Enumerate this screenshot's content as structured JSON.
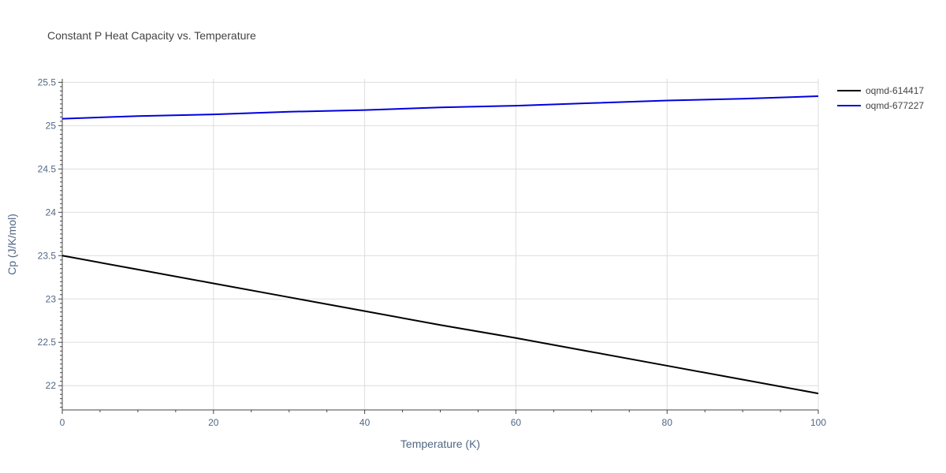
{
  "chart_data": {
    "type": "line",
    "title": "Constant P Heat Capacity vs. Temperature",
    "xlabel": "Temperature (K)",
    "ylabel": "Cp (J/K/mol)",
    "xlim": [
      0,
      100
    ],
    "ylim": [
      21.72,
      25.54
    ],
    "x_ticks": [
      0,
      20,
      40,
      60,
      80,
      100
    ],
    "y_ticks": [
      22,
      22.5,
      23,
      23.5,
      24,
      24.5,
      25,
      25.5
    ],
    "x_tick_labels": [
      "0",
      "20",
      "40",
      "60",
      "80",
      "100"
    ],
    "y_tick_labels": [
      "22",
      "22.5",
      "23",
      "23.5",
      "24",
      "24.5",
      "25",
      "25.5"
    ],
    "grid": true,
    "legend_position": "top-right",
    "series": [
      {
        "name": "oqmd-614417",
        "color": "#000000",
        "x": [
          0,
          10,
          20,
          30,
          40,
          50,
          60,
          70,
          80,
          90,
          100
        ],
        "y": [
          23.5,
          23.34,
          23.18,
          23.02,
          22.86,
          22.7,
          22.55,
          22.39,
          22.23,
          22.07,
          21.91
        ]
      },
      {
        "name": "oqmd-677227",
        "color": "#0000dd",
        "x": [
          0,
          10,
          20,
          30,
          40,
          50,
          60,
          70,
          80,
          90,
          100
        ],
        "y": [
          25.08,
          25.11,
          25.13,
          25.16,
          25.18,
          25.21,
          25.23,
          25.26,
          25.29,
          25.31,
          25.34
        ]
      }
    ]
  }
}
